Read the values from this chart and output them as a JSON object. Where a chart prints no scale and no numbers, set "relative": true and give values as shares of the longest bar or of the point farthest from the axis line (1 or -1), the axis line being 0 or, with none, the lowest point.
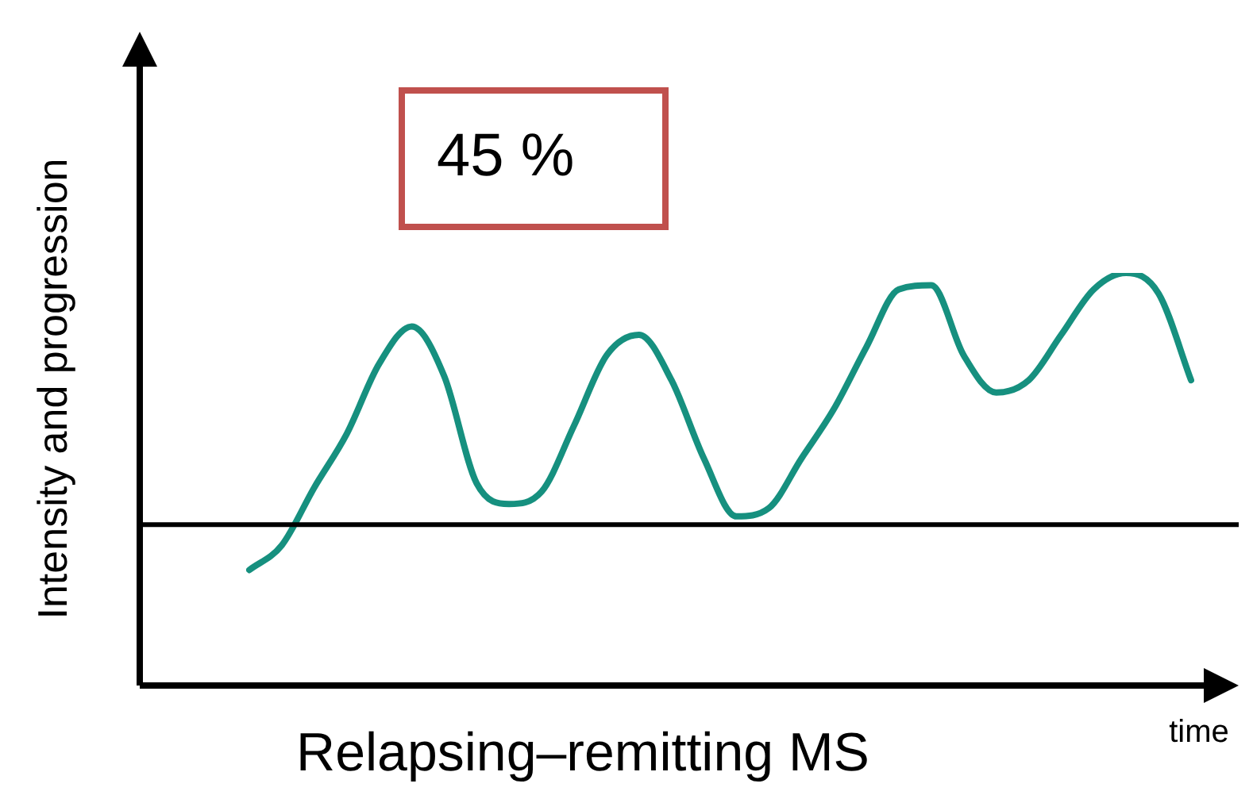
{
  "chart_data": {
    "type": "line",
    "title": "Relapsing–remitting MS",
    "xlabel": "time",
    "ylabel": "Intensity and progression",
    "annotations": [
      "45 %"
    ],
    "relative": true,
    "marker": "none",
    "categories": [
      null,
      null,
      null,
      null,
      null,
      null,
      null,
      null,
      null,
      null,
      null,
      null,
      null,
      null,
      null,
      null,
      null,
      null,
      null,
      null,
      null,
      null,
      null,
      null,
      null,
      null,
      null,
      null,
      null,
      null
    ],
    "series": [
      {
        "color": "#16907f",
        "values": [
          0.28,
          0.34,
          0.48,
          0.61,
          0.78,
          0.87,
          0.75,
          0.49,
          0.44,
          0.47,
          0.63,
          0.8,
          0.85,
          0.74,
          0.55,
          0.41,
          0.43,
          0.55,
          0.67,
          0.82,
          0.96,
          0.97,
          0.8,
          0.71,
          0.74,
          0.85,
          0.96,
          1.0,
          0.95,
          0.74
        ]
      }
    ],
    "ref_lines": [
      {
        "axis": "y",
        "value": 0.39,
        "color": "#000000"
      }
    ]
  }
}
